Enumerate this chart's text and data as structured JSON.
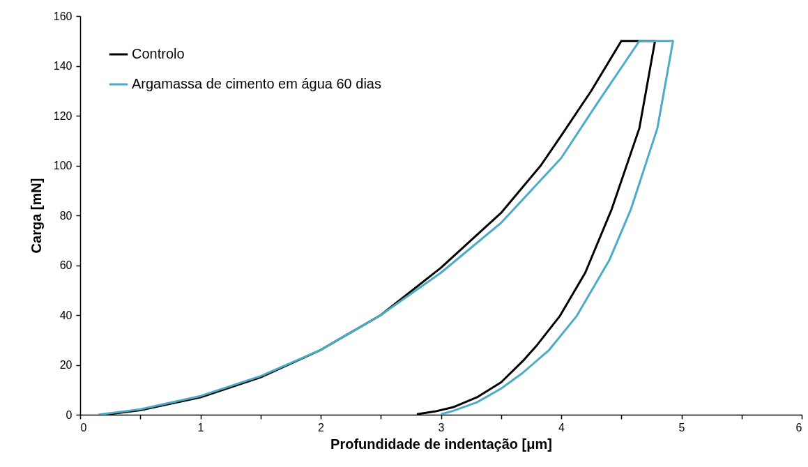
{
  "chart_data": {
    "type": "line",
    "xlabel": "Profundidade de indentação [μm]",
    "ylabel": "Carga [mN]",
    "xlim": [
      0,
      6
    ],
    "xticks": [
      0,
      {
        "value": 0.5,
        "label": null
      },
      1,
      {
        "value": 1.5,
        "label": null
      },
      2,
      {
        "value": 2.5,
        "label": null
      },
      3,
      {
        "value": 3.5,
        "label": null
      },
      4,
      {
        "value": 4.5,
        "label": null
      },
      5,
      {
        "value": 5.5,
        "label": null
      },
      6
    ],
    "ylim": [
      0,
      160
    ],
    "yticks": [
      0,
      20,
      40,
      60,
      80,
      100,
      120,
      140,
      160
    ],
    "grid": false,
    "legend": "top left",
    "marker": "none",
    "line_style": "solid",
    "series": [
      {
        "name": "Controlo",
        "color": "#000000",
        "x": [
          0.2,
          0.5,
          1,
          1.5,
          2,
          2.5,
          3,
          3.5,
          3.83,
          4,
          4.25,
          4.5,
          4.78,
          4.65,
          4.42,
          4.2,
          3.99,
          3.8,
          3.68,
          3.5,
          3.3,
          3.1,
          2.95,
          2.8
        ],
        "values": [
          0,
          1.8,
          7,
          15,
          26,
          40,
          59,
          81,
          100,
          112,
          130,
          150,
          150,
          115,
          82.5,
          57,
          39.7,
          28,
          21.5,
          13,
          7,
          3,
          1.3,
          0.2
        ]
      },
      {
        "name": "Argamassa de cimento em água 60 dias",
        "color": "#4bacc6",
        "x": [
          0.15,
          0.5,
          1,
          1.5,
          2,
          2.5,
          3,
          3.5,
          4,
          4.3,
          4.65,
          4.93,
          4.8,
          4.58,
          4.4,
          4.13,
          3.9,
          3.68,
          3.5,
          3.3,
          3.1,
          3.0
        ],
        "values": [
          0,
          2.2,
          7.5,
          15.5,
          26,
          40,
          57,
          77,
          103,
          125,
          150,
          150,
          115,
          82.5,
          62,
          39.7,
          26,
          16.8,
          10.5,
          5,
          1.5,
          0.2
        ]
      }
    ]
  }
}
